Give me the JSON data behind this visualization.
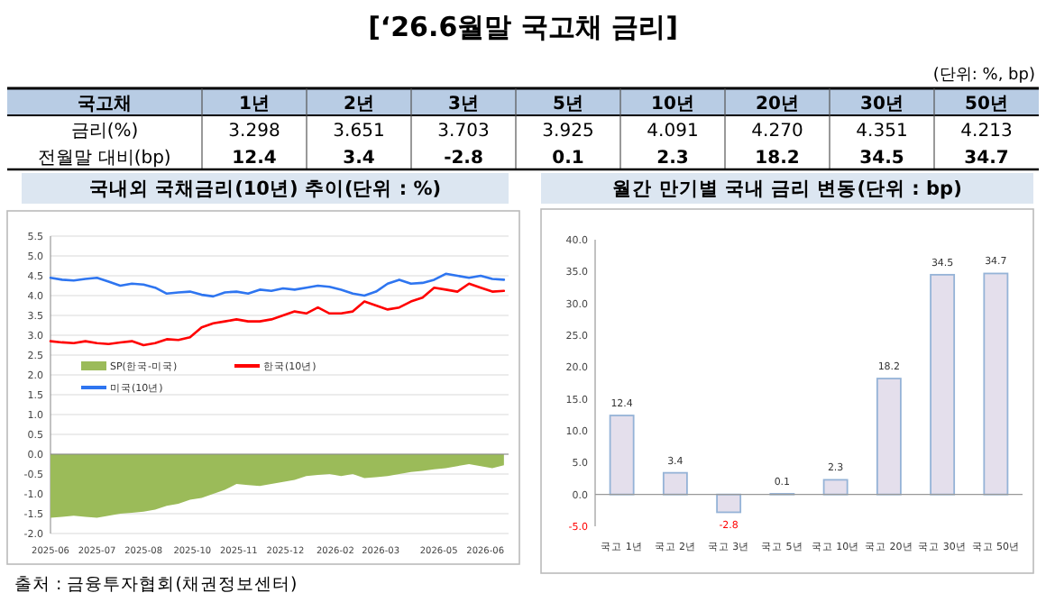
{
  "chart_data": [
    {
      "type": "heatmap",
      "title": "[‘26.6월말 국고채 금리]",
      "subtitle": "(단위: %, bp)",
      "ylabel": "국고채",
      "categories": [
        "1년",
        "2년",
        "3년",
        "5년",
        "10년",
        "20년",
        "30년",
        "50년"
      ],
      "y_categories": [
        "금리(%)",
        "전월말 대비(bp)"
      ],
      "cells": [
        [
          3.298,
          3.651,
          3.703,
          3.925,
          4.091,
          4.27,
          4.351,
          4.213
        ],
        [
          12.4,
          3.4,
          -2.8,
          0.1,
          2.3,
          18.2,
          34.5,
          34.7
        ]
      ],
      "cell_labels": [
        [
          "3.298",
          "3.651",
          "3.703",
          "3.925",
          "4.091",
          "4.270",
          "4.351",
          "4.213"
        ],
        [
          "12.4",
          "3.4",
          "-2.8",
          "0.1",
          "2.3",
          "18.2",
          "34.5",
          "34.7"
        ]
      ],
      "data_labels": true
    },
    {
      "type": "line",
      "title": "국내외 국채금리(10년) 추이(단위 : %)",
      "x": [
        "2025-06-01",
        "2025-06-11",
        "2025-06-21",
        "2025-07-01",
        "2025-07-11",
        "2025-07-21",
        "2025-07-31",
        "2025-08-10",
        "2025-08-20",
        "2025-08-30",
        "2025-09-09",
        "2025-09-19",
        "2025-09-29",
        "2025-10-09",
        "2025-10-19",
        "2025-10-29",
        "2025-11-08",
        "2025-11-18",
        "2025-11-28",
        "2025-12-08",
        "2025-12-18",
        "2025-12-28",
        "2026-01-07",
        "2026-01-17",
        "2026-01-27",
        "2026-02-06",
        "2026-02-16",
        "2026-02-26",
        "2026-03-08",
        "2026-03-18",
        "2026-03-28",
        "2026-04-07",
        "2026-04-17",
        "2026-04-27",
        "2026-05-07",
        "2026-05-17",
        "2026-05-27",
        "2026-06-06",
        "2026-06-16",
        "2026-06-26"
      ],
      "series": [
        {
          "name": "SP(한국-미국)",
          "type": "area",
          "color": "#9bbb59",
          "values": [
            -1.6,
            -1.58,
            -1.55,
            -1.58,
            -1.6,
            -1.55,
            -1.5,
            -1.48,
            -1.45,
            -1.4,
            -1.3,
            -1.25,
            -1.15,
            -1.1,
            -1.0,
            -0.9,
            -0.75,
            -0.78,
            -0.8,
            -0.75,
            -0.7,
            -0.65,
            -0.55,
            -0.52,
            -0.5,
            -0.55,
            -0.5,
            -0.6,
            -0.58,
            -0.55,
            -0.5,
            -0.45,
            -0.42,
            -0.38,
            -0.35,
            -0.3,
            -0.25,
            -0.3,
            -0.35,
            -0.28
          ]
        },
        {
          "name": "한국(10년)",
          "type": "line",
          "color": "#ff0000",
          "values": [
            2.85,
            2.82,
            2.8,
            2.85,
            2.8,
            2.78,
            2.82,
            2.85,
            2.75,
            2.8,
            2.9,
            2.88,
            2.95,
            3.2,
            3.3,
            3.35,
            3.4,
            3.35,
            3.35,
            3.4,
            3.5,
            3.6,
            3.55,
            3.7,
            3.55,
            3.55,
            3.6,
            3.85,
            3.75,
            3.65,
            3.7,
            3.85,
            3.95,
            4.2,
            4.15,
            4.1,
            4.3,
            4.2,
            4.1,
            4.12
          ]
        },
        {
          "name": "미국(10년)",
          "type": "line",
          "color": "#2e75f0",
          "values": [
            4.45,
            4.4,
            4.38,
            4.42,
            4.45,
            4.35,
            4.25,
            4.3,
            4.28,
            4.2,
            4.05,
            4.08,
            4.1,
            4.02,
            3.98,
            4.08,
            4.1,
            4.05,
            4.15,
            4.12,
            4.18,
            4.15,
            4.2,
            4.25,
            4.22,
            4.15,
            4.05,
            4.0,
            4.1,
            4.3,
            4.4,
            4.3,
            4.32,
            4.4,
            4.55,
            4.5,
            4.45,
            4.5,
            4.42,
            4.4
          ]
        }
      ],
      "xlim": [
        "2025-06-01",
        "2026-06-30"
      ],
      "xticks": [
        {
          "value": "2025-06-01",
          "label": "2025-06"
        },
        {
          "value": "2025-07-11",
          "label": "2025-07"
        },
        {
          "value": "2025-08-20",
          "label": "2025-08"
        },
        {
          "value": "2025-10-01",
          "label": "2025-10"
        },
        {
          "value": "2025-11-10",
          "label": "2025-11"
        },
        {
          "value": "2025-12-20",
          "label": "2025-12"
        },
        {
          "value": "2026-02-01",
          "label": "2026-02"
        },
        {
          "value": "2026-03-12",
          "label": "2026-03"
        },
        {
          "value": "2026-05-01",
          "label": "2026-05"
        },
        {
          "value": "2026-06-10",
          "label": "2026-06"
        }
      ],
      "ylim": [
        -2.0,
        5.5
      ],
      "yticks": [
        {
          "value": -2,
          "label": "-2.0"
        },
        -1.5,
        {
          "value": -1,
          "label": "-1.0"
        },
        -0.5,
        {
          "value": 0,
          "label": "0.0"
        },
        0.5,
        {
          "value": 1,
          "label": "1.0"
        },
        1.5,
        {
          "value": 2,
          "label": "2.0"
        },
        2.5,
        {
          "value": 3,
          "label": "3.0"
        },
        3.5,
        {
          "value": 4,
          "label": "4.0"
        },
        4.5,
        {
          "value": 5,
          "label": "5.0"
        },
        5.5
      ],
      "grid": "y",
      "legend": "left",
      "marker": "none",
      "line_style": "solid",
      "annotations": [
        "출처 : 금융투자협회(채권정보센터)"
      ]
    },
    {
      "type": "bar",
      "title": "월간 만기별 국내 금리 변동(단위 : bp)",
      "categories": [
        "국고 1년",
        "국고 2년",
        "국고 3년",
        "국고 5년",
        "국고 10년",
        "국고 20년",
        "국고 30년",
        "국고 50년"
      ],
      "values": [
        12.4,
        3.4,
        -2.8,
        0.1,
        2.3,
        18.2,
        34.5,
        34.7
      ],
      "color": "#e4dfec",
      "ylim": [
        -5,
        40
      ],
      "yticks": [
        {
          "value": -5,
          "label": "-5.0"
        },
        {
          "value": 0,
          "label": "0.0"
        },
        {
          "value": 5,
          "label": "5.0"
        },
        {
          "value": 10,
          "label": "10.0"
        },
        {
          "value": 15,
          "label": "15.0"
        },
        {
          "value": 20,
          "label": "20.0"
        },
        {
          "value": 25,
          "label": "25.0"
        },
        {
          "value": 30,
          "label": "30.0"
        },
        {
          "value": 35,
          "label": "35.0"
        },
        {
          "value": 40,
          "label": "40.0"
        }
      ],
      "data_labels": true
    }
  ]
}
